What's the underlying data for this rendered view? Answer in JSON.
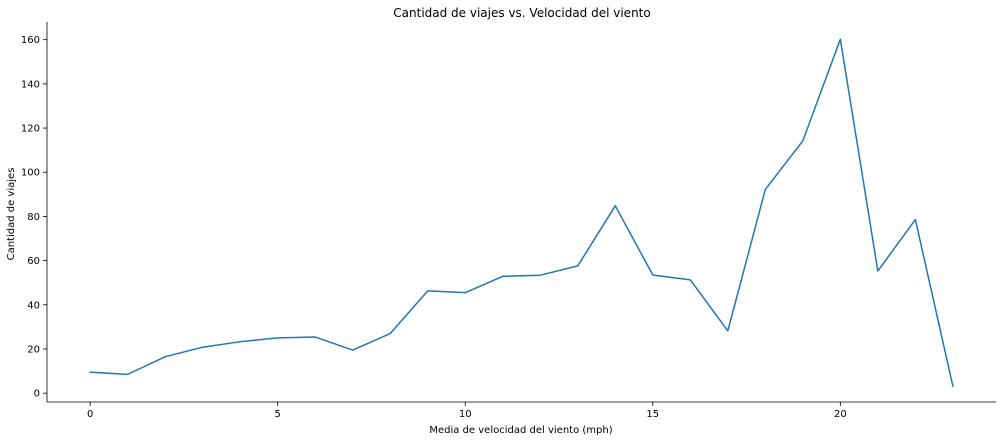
{
  "chart_data": {
    "type": "line",
    "title": "Cantidad de viajes vs. Velocidad del viento",
    "xlabel": "Media de velocidad del viento (mph)",
    "ylabel": "Cantidad de viajes",
    "xlim": [
      -1.15,
      24.15
    ],
    "ylim": [
      -4,
      168
    ],
    "xticks": [
      0,
      5,
      10,
      15,
      20
    ],
    "yticks": [
      0,
      20,
      40,
      60,
      80,
      100,
      120,
      140,
      160
    ],
    "grid": false,
    "legend": "none",
    "series": [
      {
        "color": "#1f77b4",
        "x": [
          0,
          1,
          2,
          3,
          4,
          5,
          6,
          7,
          8,
          9,
          10,
          11,
          12,
          13,
          14,
          15,
          16,
          17,
          18,
          19,
          20,
          21,
          22,
          23
        ],
        "values": [
          9.5,
          8.5,
          16.5,
          20.8,
          23.3,
          25.0,
          25.4,
          19.5,
          27.0,
          46.3,
          45.5,
          52.9,
          53.4,
          57.6,
          84.8,
          53.5,
          51.3,
          28.2,
          92.2,
          114.2,
          160.2,
          55.3,
          78.6,
          3.2
        ]
      }
    ]
  }
}
